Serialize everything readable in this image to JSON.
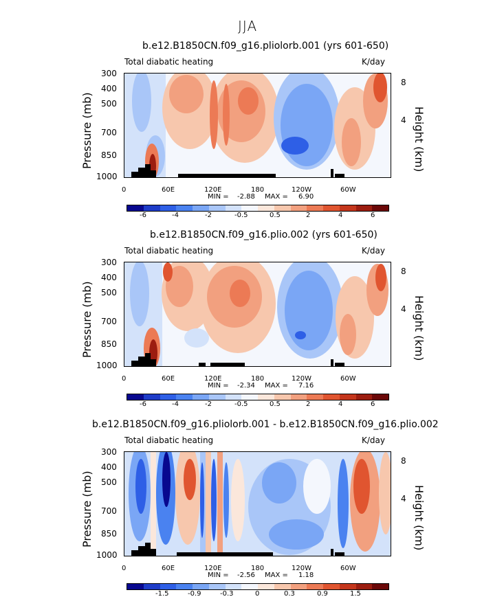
{
  "figure_title": "JJA",
  "chart_data": [
    {
      "type": "heatmap",
      "title": "b.e12.B1850CN.f09_g16.pliolorb.001 (yrs 601-650)",
      "left_label": "Total diabatic heating",
      "units": "K/day",
      "ylabel": "Pressure (mb)",
      "ylabel_right": "Height (km)",
      "x_ticks": [
        "0",
        "60E",
        "120E",
        "180",
        "120W",
        "60W"
      ],
      "y_ticks": [
        "300",
        "400",
        "500",
        "700",
        "850",
        "1000"
      ],
      "height_ticks": [
        "8",
        "4"
      ],
      "min_label": "MIN =",
      "min_value": "-2.88",
      "max_label": "MAX =",
      "max_value": "6.90",
      "colorbar_ticks": [
        "-6",
        "-4",
        "-2",
        "-0.5",
        "0.5",
        "2",
        "4",
        "6"
      ]
    },
    {
      "type": "heatmap",
      "title": "b.e12.B1850CN.f09_g16.plio.002 (yrs 601-650)",
      "left_label": "Total diabatic heating",
      "units": "K/day",
      "ylabel": "Pressure (mb)",
      "ylabel_right": "Height (km)",
      "x_ticks": [
        "0",
        "60E",
        "120E",
        "180",
        "120W",
        "60W"
      ],
      "y_ticks": [
        "300",
        "400",
        "500",
        "700",
        "850",
        "1000"
      ],
      "height_ticks": [
        "8",
        "4"
      ],
      "min_label": "MIN =",
      "min_value": "-2.34",
      "max_label": "MAX =",
      "max_value": "7.16",
      "colorbar_ticks": [
        "-6",
        "-4",
        "-2",
        "-0.5",
        "0.5",
        "2",
        "4",
        "6"
      ]
    },
    {
      "type": "heatmap",
      "title": "b.e12.B1850CN.f09_g16.pliolorb.001 - b.e12.B1850CN.f09_g16.plio.002",
      "left_label": "Total diabatic heating",
      "units": "K/day",
      "ylabel": "Pressure (mb)",
      "ylabel_right": "Height (km)",
      "x_ticks": [
        "0",
        "60E",
        "120E",
        "180",
        "120W",
        "60W"
      ],
      "y_ticks": [
        "300",
        "400",
        "500",
        "700",
        "850",
        "1000"
      ],
      "height_ticks": [
        "8",
        "4"
      ],
      "min_label": "MIN =",
      "min_value": "-2.56",
      "max_label": "MAX =",
      "max_value": "1.18",
      "colorbar_ticks": [
        "-1.5",
        "-0.9",
        "-0.3",
        "0",
        "0.3",
        "0.9",
        "1.5"
      ]
    }
  ],
  "colors": {
    "c01": "#08088f",
    "c02": "#1e3cc8",
    "c03": "#2e5fe6",
    "c04": "#4a82f0",
    "c05": "#7aa6f5",
    "c06": "#a9c6f8",
    "c07": "#d3e2fa",
    "c08": "#f4f7fd",
    "c09": "#fbe7db",
    "c10": "#f7c7ad",
    "c11": "#f2a07f",
    "c12": "#ec7a55",
    "c13": "#e05530",
    "c14": "#c4361c",
    "c15": "#9c1d10",
    "c16": "#6b0808",
    "terrain": "#000000"
  }
}
